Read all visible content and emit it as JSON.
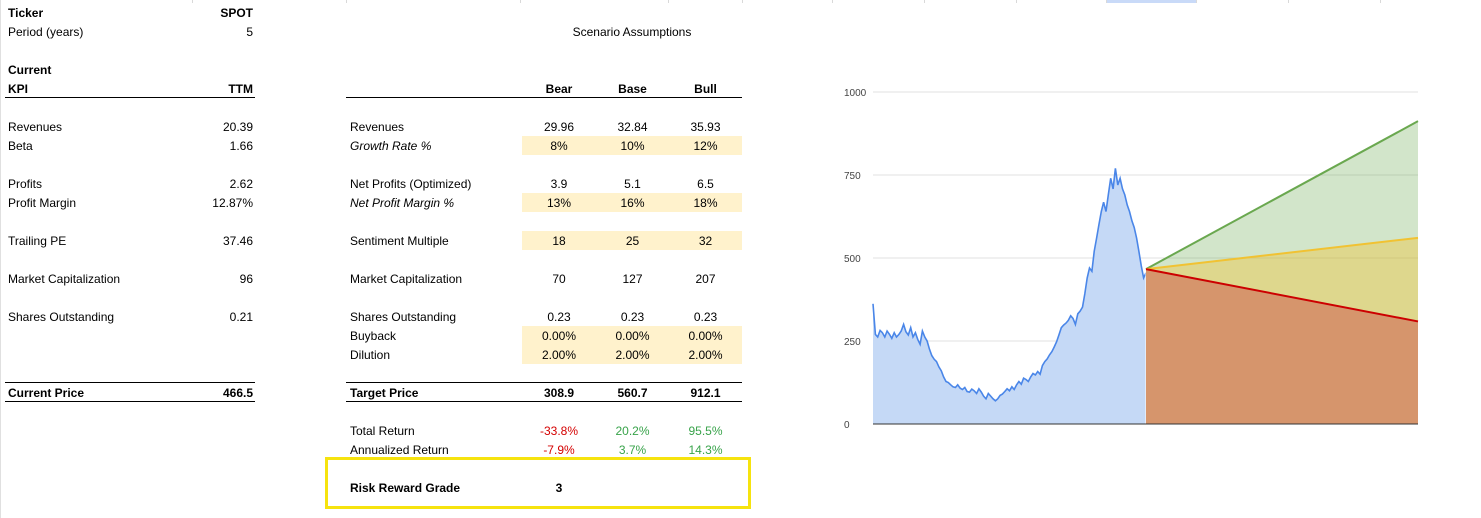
{
  "header": {
    "ticker_label": "Ticker",
    "ticker_value": "SPOT",
    "period_label": "Period (years)",
    "period_value": "5",
    "scenario_title": "Scenario Assumptions",
    "current_label": "Current",
    "kpi_label": "KPI",
    "ttm_label": "TTM",
    "bear_label": "Bear",
    "base_label": "Base",
    "bull_label": "Bull"
  },
  "left_rows": [
    {
      "label": "Revenues",
      "value": "20.39"
    },
    {
      "label": "Beta",
      "value": "1.66"
    },
    {
      "label": "Profits",
      "value": "2.62"
    },
    {
      "label": "Profit Margin",
      "value": "12.87%"
    },
    {
      "label": "Trailing PE",
      "value": "37.46"
    },
    {
      "label": "Market Capitalization",
      "value": "96"
    },
    {
      "label": "Shares Outstanding",
      "value": "0.21"
    }
  ],
  "scenario_rows": [
    {
      "label": "Revenues",
      "bear": "29.96",
      "base": "32.84",
      "bull": "35.93"
    },
    {
      "label": "Growth Rate %",
      "bear": "8%",
      "base": "10%",
      "bull": "12%"
    },
    {
      "label": "Net Profits (Optimized)",
      "bear": "3.9",
      "base": "5.1",
      "bull": "6.5"
    },
    {
      "label": "Net Profit Margin %",
      "bear": "13%",
      "base": "16%",
      "bull": "18%"
    },
    {
      "label": "Sentiment Multiple",
      "bear": "18",
      "base": "25",
      "bull": "32"
    },
    {
      "label": "Market Capitalization",
      "bear": "70",
      "base": "127",
      "bull": "207"
    },
    {
      "label": "Shares Outstanding",
      "bear": "0.23",
      "base": "0.23",
      "bull": "0.23"
    },
    {
      "label": "Buyback",
      "bear": "0.00%",
      "base": "0.00%",
      "bull": "0.00%"
    },
    {
      "label": "Dilution",
      "bear": "2.00%",
      "base": "2.00%",
      "bull": "2.00%"
    }
  ],
  "current_price": {
    "label": "Current Price",
    "value": "466.5"
  },
  "target_price": {
    "label": "Target Price",
    "bear": "308.9",
    "base": "560.7",
    "bull": "912.1"
  },
  "total_return": {
    "label": "Total Return",
    "bear": "-33.8%",
    "base": "20.2%",
    "bull": "95.5%"
  },
  "annualized_return": {
    "label": "Annualized Return",
    "bear": "-7.9%",
    "base": "3.7%",
    "bull": "14.3%"
  },
  "grade": {
    "label": "Risk Reward Grade",
    "value": "3"
  },
  "colors": {
    "highlight": "#fff2cc",
    "negative": "#d40000",
    "positive": "#38a34a",
    "grade_border": "#f6e30e"
  },
  "chart_data": {
    "type": "area",
    "ylim": [
      0,
      1000
    ],
    "yticks": [
      "1000",
      "750",
      "500",
      "250",
      "0"
    ],
    "history": [
      362,
      270,
      262,
      282,
      275,
      262,
      280,
      270,
      258,
      275,
      262,
      270,
      280,
      300,
      278,
      268,
      290,
      262,
      275,
      255,
      240,
      280,
      262,
      250,
      225,
      206,
      195,
      188,
      172,
      160,
      142,
      128,
      125,
      118,
      112,
      110,
      118,
      108,
      104,
      110,
      98,
      96,
      105,
      100,
      92,
      106,
      96,
      84,
      76,
      92,
      84,
      76,
      70,
      76,
      86,
      90,
      98,
      106,
      100,
      112,
      104,
      118,
      128,
      120,
      138,
      134,
      128,
      142,
      152,
      148,
      158,
      150,
      176,
      188,
      196,
      208,
      218,
      232,
      248,
      268,
      290,
      298,
      304,
      312,
      326,
      318,
      300,
      332,
      340,
      352,
      392,
      440,
      470,
      460,
      520,
      560,
      600,
      640,
      668,
      640,
      690,
      740,
      708,
      770,
      720,
      740,
      708,
      690,
      660,
      640,
      612,
      592,
      560,
      520,
      476,
      440,
      455
    ],
    "projection_start": 466.5,
    "scenarios": [
      {
        "name": "Bear",
        "end": 308.9,
        "color": "#cc0000"
      },
      {
        "name": "Base",
        "end": 560.7,
        "color": "#f1c232"
      },
      {
        "name": "Bull",
        "end": 912.1,
        "color": "#6aa84f"
      }
    ]
  }
}
